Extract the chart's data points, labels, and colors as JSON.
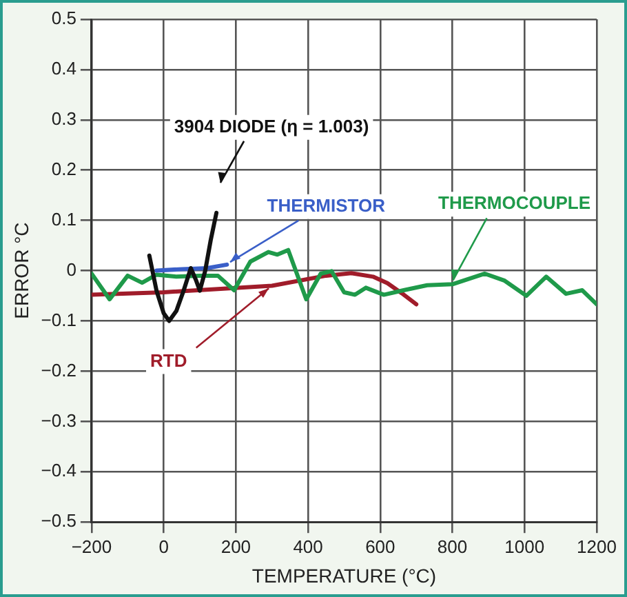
{
  "chart_data": {
    "type": "line",
    "xlabel": "TEMPERATURE (°C)",
    "ylabel": "ERROR °C",
    "xlim": [
      -200,
      1200
    ],
    "xticks": [
      {
        "value": -200,
        "label": "−200"
      },
      0,
      200,
      400,
      600,
      800,
      1000,
      1200
    ],
    "ylim": [
      -0.5,
      0.5
    ],
    "yticks": [
      {
        "value": -0.5,
        "label": "−0.5"
      },
      {
        "value": -0.4,
        "label": "−0.4"
      },
      {
        "value": -0.3,
        "label": "−0.3"
      },
      {
        "value": -0.2,
        "label": "−0.2"
      },
      {
        "value": -0.1,
        "label": "−0.1"
      },
      0,
      0.1,
      0.2,
      0.3,
      0.4,
      0.5
    ],
    "grid": true,
    "legend": false,
    "marker": "none",
    "line_style": "solid",
    "series": [
      {
        "name": "3904 DIODE (η = 1.003)",
        "color": "#111111",
        "x": [
          -40,
          -20,
          0,
          15,
          35,
          55,
          75,
          90,
          100,
          115,
          130,
          146
        ],
        "values": [
          0.03,
          -0.04,
          -0.085,
          -0.1,
          -0.08,
          -0.04,
          0.005,
          -0.02,
          -0.04,
          0,
          0.06,
          0.115
        ]
      },
      {
        "name": "THERMISTOR",
        "color": "#3a5fc8",
        "x": [
          -20,
          50,
          120,
          175
        ],
        "values": [
          0,
          0.003,
          0.005,
          0.012
        ]
      },
      {
        "name": "THERMOCOUPLE",
        "color": "#1f9a4a",
        "x": [
          -200,
          -150,
          -100,
          -60,
          -20,
          35,
          100,
          150,
          195,
          240,
          290,
          315,
          345,
          395,
          435,
          465,
          500,
          530,
          560,
          610,
          665,
          730,
          800,
          890,
          945,
          1005,
          1060,
          1115,
          1160,
          1200
        ],
        "values": [
          -0.006,
          -0.057,
          -0.01,
          -0.024,
          -0.008,
          -0.012,
          -0.01,
          -0.01,
          -0.039,
          0.018,
          0.037,
          0.032,
          0.041,
          -0.057,
          -0.006,
          -0.001,
          -0.043,
          -0.048,
          -0.034,
          -0.048,
          -0.039,
          -0.029,
          -0.027,
          -0.006,
          -0.02,
          -0.05,
          -0.012,
          -0.046,
          -0.039,
          -0.067
        ]
      },
      {
        "name": "RTD",
        "color": "#a01c2a",
        "x": [
          -200,
          0,
          300,
          450,
          520,
          580,
          620,
          660,
          700
        ],
        "values": [
          -0.048,
          -0.043,
          -0.03,
          -0.01,
          -0.005,
          -0.012,
          -0.025,
          -0.045,
          -0.067
        ]
      }
    ]
  }
}
